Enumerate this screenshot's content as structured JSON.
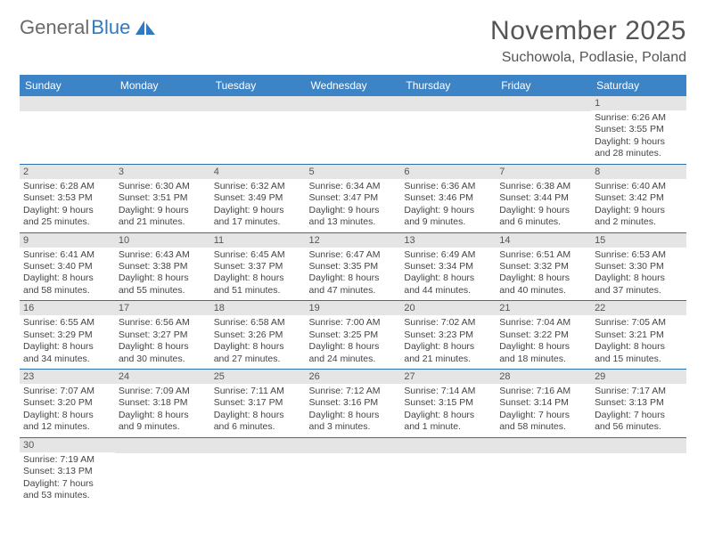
{
  "brand": {
    "part1": "General",
    "part2": "Blue"
  },
  "title": "November 2025",
  "location": "Suchowola, Podlasie, Poland",
  "colors": {
    "header_bg": "#3d84c6",
    "row_divider": "#2f6fae",
    "daynum_bg": "#e5e5e5",
    "text": "#444444",
    "title": "#555555",
    "brand_gray": "#6a6a6a",
    "brand_blue": "#2f7ac0"
  },
  "weekdays": [
    "Sunday",
    "Monday",
    "Tuesday",
    "Wednesday",
    "Thursday",
    "Friday",
    "Saturday"
  ],
  "grid": [
    [
      null,
      null,
      null,
      null,
      null,
      null,
      {
        "n": "1",
        "sr": "Sunrise: 6:26 AM",
        "ss": "Sunset: 3:55 PM",
        "dl": "Daylight: 9 hours and 28 minutes."
      }
    ],
    [
      {
        "n": "2",
        "sr": "Sunrise: 6:28 AM",
        "ss": "Sunset: 3:53 PM",
        "dl": "Daylight: 9 hours and 25 minutes."
      },
      {
        "n": "3",
        "sr": "Sunrise: 6:30 AM",
        "ss": "Sunset: 3:51 PM",
        "dl": "Daylight: 9 hours and 21 minutes."
      },
      {
        "n": "4",
        "sr": "Sunrise: 6:32 AM",
        "ss": "Sunset: 3:49 PM",
        "dl": "Daylight: 9 hours and 17 minutes."
      },
      {
        "n": "5",
        "sr": "Sunrise: 6:34 AM",
        "ss": "Sunset: 3:47 PM",
        "dl": "Daylight: 9 hours and 13 minutes."
      },
      {
        "n": "6",
        "sr": "Sunrise: 6:36 AM",
        "ss": "Sunset: 3:46 PM",
        "dl": "Daylight: 9 hours and 9 minutes."
      },
      {
        "n": "7",
        "sr": "Sunrise: 6:38 AM",
        "ss": "Sunset: 3:44 PM",
        "dl": "Daylight: 9 hours and 6 minutes."
      },
      {
        "n": "8",
        "sr": "Sunrise: 6:40 AM",
        "ss": "Sunset: 3:42 PM",
        "dl": "Daylight: 9 hours and 2 minutes."
      }
    ],
    [
      {
        "n": "9",
        "sr": "Sunrise: 6:41 AM",
        "ss": "Sunset: 3:40 PM",
        "dl": "Daylight: 8 hours and 58 minutes."
      },
      {
        "n": "10",
        "sr": "Sunrise: 6:43 AM",
        "ss": "Sunset: 3:38 PM",
        "dl": "Daylight: 8 hours and 55 minutes."
      },
      {
        "n": "11",
        "sr": "Sunrise: 6:45 AM",
        "ss": "Sunset: 3:37 PM",
        "dl": "Daylight: 8 hours and 51 minutes."
      },
      {
        "n": "12",
        "sr": "Sunrise: 6:47 AM",
        "ss": "Sunset: 3:35 PM",
        "dl": "Daylight: 8 hours and 47 minutes."
      },
      {
        "n": "13",
        "sr": "Sunrise: 6:49 AM",
        "ss": "Sunset: 3:34 PM",
        "dl": "Daylight: 8 hours and 44 minutes."
      },
      {
        "n": "14",
        "sr": "Sunrise: 6:51 AM",
        "ss": "Sunset: 3:32 PM",
        "dl": "Daylight: 8 hours and 40 minutes."
      },
      {
        "n": "15",
        "sr": "Sunrise: 6:53 AM",
        "ss": "Sunset: 3:30 PM",
        "dl": "Daylight: 8 hours and 37 minutes."
      }
    ],
    [
      {
        "n": "16",
        "sr": "Sunrise: 6:55 AM",
        "ss": "Sunset: 3:29 PM",
        "dl": "Daylight: 8 hours and 34 minutes."
      },
      {
        "n": "17",
        "sr": "Sunrise: 6:56 AM",
        "ss": "Sunset: 3:27 PM",
        "dl": "Daylight: 8 hours and 30 minutes."
      },
      {
        "n": "18",
        "sr": "Sunrise: 6:58 AM",
        "ss": "Sunset: 3:26 PM",
        "dl": "Daylight: 8 hours and 27 minutes."
      },
      {
        "n": "19",
        "sr": "Sunrise: 7:00 AM",
        "ss": "Sunset: 3:25 PM",
        "dl": "Daylight: 8 hours and 24 minutes."
      },
      {
        "n": "20",
        "sr": "Sunrise: 7:02 AM",
        "ss": "Sunset: 3:23 PM",
        "dl": "Daylight: 8 hours and 21 minutes."
      },
      {
        "n": "21",
        "sr": "Sunrise: 7:04 AM",
        "ss": "Sunset: 3:22 PM",
        "dl": "Daylight: 8 hours and 18 minutes."
      },
      {
        "n": "22",
        "sr": "Sunrise: 7:05 AM",
        "ss": "Sunset: 3:21 PM",
        "dl": "Daylight: 8 hours and 15 minutes."
      }
    ],
    [
      {
        "n": "23",
        "sr": "Sunrise: 7:07 AM",
        "ss": "Sunset: 3:20 PM",
        "dl": "Daylight: 8 hours and 12 minutes."
      },
      {
        "n": "24",
        "sr": "Sunrise: 7:09 AM",
        "ss": "Sunset: 3:18 PM",
        "dl": "Daylight: 8 hours and 9 minutes."
      },
      {
        "n": "25",
        "sr": "Sunrise: 7:11 AM",
        "ss": "Sunset: 3:17 PM",
        "dl": "Daylight: 8 hours and 6 minutes."
      },
      {
        "n": "26",
        "sr": "Sunrise: 7:12 AM",
        "ss": "Sunset: 3:16 PM",
        "dl": "Daylight: 8 hours and 3 minutes."
      },
      {
        "n": "27",
        "sr": "Sunrise: 7:14 AM",
        "ss": "Sunset: 3:15 PM",
        "dl": "Daylight: 8 hours and 1 minute."
      },
      {
        "n": "28",
        "sr": "Sunrise: 7:16 AM",
        "ss": "Sunset: 3:14 PM",
        "dl": "Daylight: 7 hours and 58 minutes."
      },
      {
        "n": "29",
        "sr": "Sunrise: 7:17 AM",
        "ss": "Sunset: 3:13 PM",
        "dl": "Daylight: 7 hours and 56 minutes."
      }
    ],
    [
      {
        "n": "30",
        "sr": "Sunrise: 7:19 AM",
        "ss": "Sunset: 3:13 PM",
        "dl": "Daylight: 7 hours and 53 minutes."
      },
      null,
      null,
      null,
      null,
      null,
      null
    ]
  ]
}
